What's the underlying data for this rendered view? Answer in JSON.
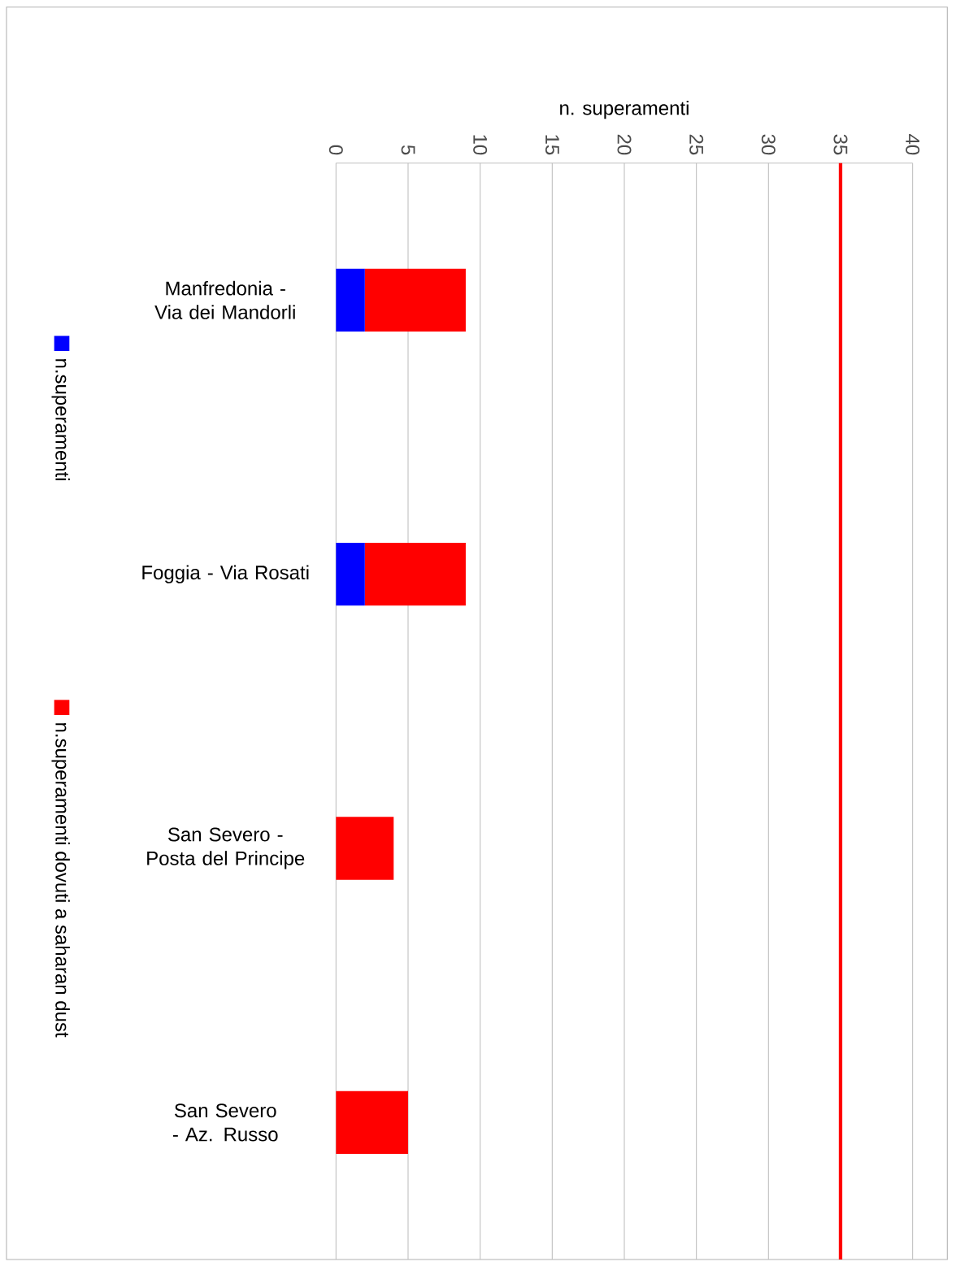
{
  "chart_data": {
    "type": "bar",
    "orientation": "horizontal",
    "stacked": true,
    "xlabel": "n. superamenti",
    "categories": [
      "Manfredonia - Via dei Mandorli",
      "Foggia - Via Rosati",
      "San Severo - Posta del Principe",
      "San Severo - Az. Russo"
    ],
    "series": [
      {
        "name": "n.superamenti",
        "color": "#0000ff",
        "values": [
          2,
          2,
          0,
          0
        ]
      },
      {
        "name": "n.superamenti dovuti a saharan dust",
        "color": "#ff0000",
        "values": [
          7,
          7,
          4,
          5
        ]
      }
    ],
    "xlim": [
      0,
      40
    ],
    "xticks": [
      0,
      5,
      10,
      15,
      20,
      25,
      30,
      35,
      40
    ],
    "ref_lines": [
      {
        "axis": "x",
        "value": 35,
        "color": "#ff0000"
      }
    ],
    "grid": "x",
    "legend": "left"
  }
}
